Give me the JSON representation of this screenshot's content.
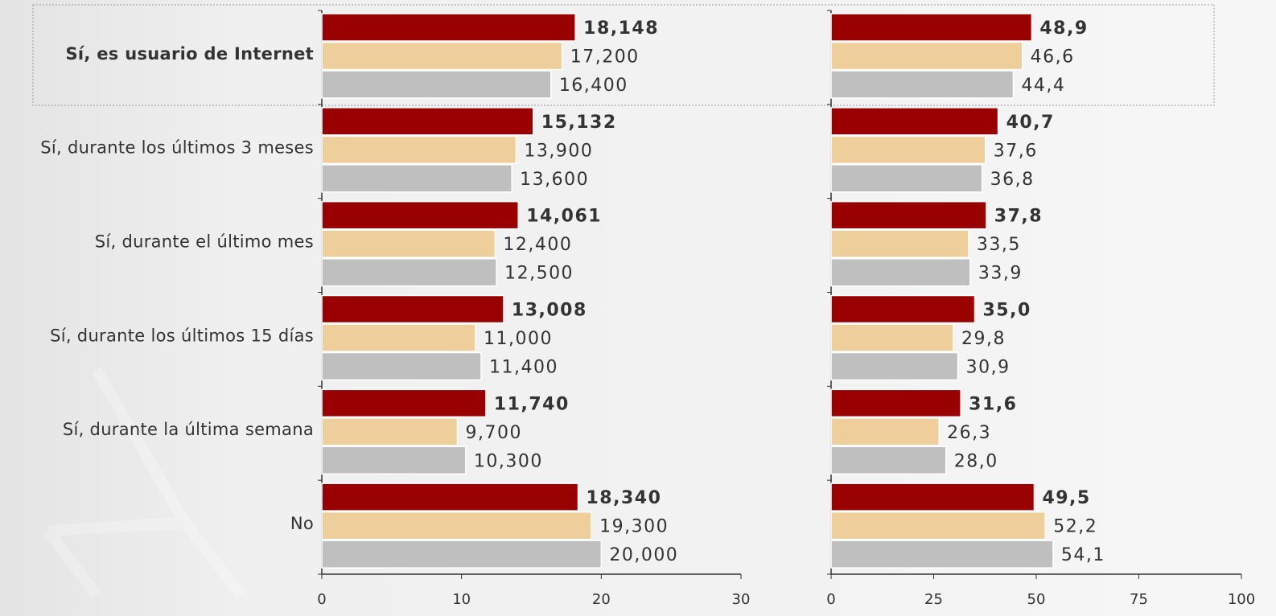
{
  "chart_data": [
    {
      "type": "bar",
      "orientation": "horizontal",
      "categories": [
        "Sí, es usuario de Internet",
        "Sí, durante los últimos 3 meses",
        "Sí, durante el último mes",
        "Sí, durante los últimos 15 días",
        "Sí, durante la última semana",
        "No"
      ],
      "series": [
        {
          "color": "#990000",
          "values": [
            18.148,
            15.132,
            14.061,
            13.008,
            11.74,
            18.34
          ],
          "value_labels": [
            "18,148",
            "15,132",
            "14,061",
            "13,008",
            "11,740",
            "18,340"
          ]
        },
        {
          "color": "#eecf9c",
          "values": [
            17.2,
            13.9,
            12.4,
            11.0,
            9.7,
            19.3
          ],
          "value_labels": [
            "17,200",
            "13,900",
            "12,400",
            "11,000",
            "9,700",
            "19,300"
          ]
        },
        {
          "color": "#bfbfbf",
          "values": [
            16.4,
            13.6,
            12.5,
            11.4,
            10.3,
            20.0
          ],
          "value_labels": [
            "16,400",
            "13,600",
            "12,500",
            "11,400",
            "10,300",
            "20,000"
          ]
        }
      ],
      "xlim": [
        0,
        30
      ],
      "xticks": [
        0,
        10,
        20,
        30
      ]
    },
    {
      "type": "bar",
      "orientation": "horizontal",
      "series": [
        {
          "color": "#990000",
          "values": [
            48.9,
            40.7,
            37.8,
            35.0,
            31.6,
            49.5
          ],
          "value_labels": [
            "48,9",
            "40,7",
            "37,8",
            "35,0",
            "31,6",
            "49,5"
          ]
        },
        {
          "color": "#eecf9c",
          "values": [
            46.6,
            37.6,
            33.5,
            29.8,
            26.3,
            52.2
          ],
          "value_labels": [
            "46,6",
            "37,6",
            "33,5",
            "29,8",
            "26,3",
            "52,2"
          ]
        },
        {
          "color": "#bfbfbf",
          "values": [
            44.4,
            36.8,
            33.9,
            30.9,
            28.0,
            54.1
          ],
          "value_labels": [
            "44,4",
            "36,8",
            "33,9",
            "30,9",
            "28,0",
            "54,1"
          ]
        }
      ],
      "xlim": [
        0,
        100
      ],
      "xticks": [
        0,
        25,
        50,
        75,
        100
      ]
    }
  ]
}
